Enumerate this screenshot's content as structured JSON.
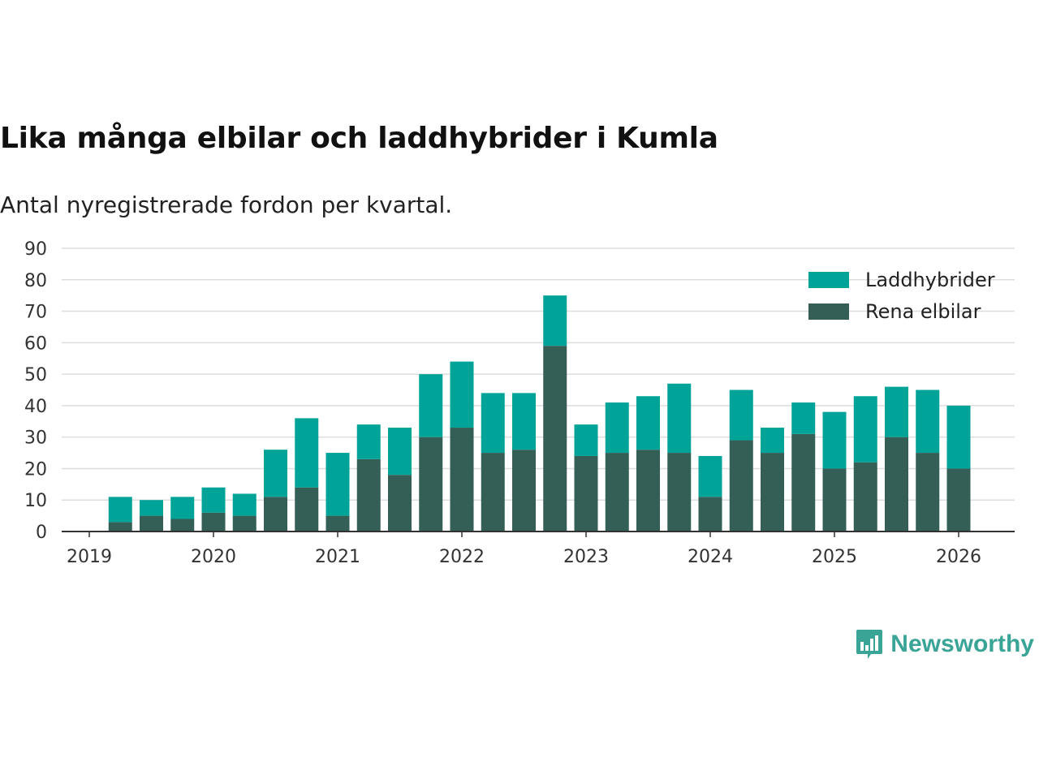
{
  "title": "Lika många elbilar och laddhybrider i Kumla",
  "subtitle": "Antal nyregistrerade fordon per kvartal.",
  "brand": {
    "name": "Newsworthy",
    "icon": "newsworthy-logo-icon",
    "color": "#3aa497"
  },
  "colors": {
    "laddhybrider": "#00a398",
    "elbilar": "#335f57",
    "grid": "#dddddd",
    "axis": "#333333"
  },
  "chart_data": {
    "type": "bar",
    "stacked": true,
    "title": "Lika många elbilar och laddhybrider i Kumla",
    "subtitle": "Antal nyregistrerade fordon per kvartal.",
    "xlabel": "",
    "ylabel": "",
    "ylim": [
      0,
      90
    ],
    "yticks": [
      "0",
      "10",
      "20",
      "30",
      "40",
      "50",
      "60",
      "70",
      "80",
      "90"
    ],
    "xticks": [
      "2019",
      "2020",
      "2021",
      "2022",
      "2023",
      "2024",
      "2025",
      "2026"
    ],
    "x_range": [
      2019.0,
      2026.0
    ],
    "grid": true,
    "legend_position": "top-right",
    "categories": [
      "2019 Q2",
      "2019 Q3",
      "2019 Q4",
      "2020 Q1",
      "2020 Q2",
      "2020 Q3",
      "2020 Q4",
      "2021 Q1",
      "2021 Q2",
      "2021 Q3",
      "2021 Q4",
      "2022 Q1",
      "2022 Q2",
      "2022 Q3",
      "2022 Q4",
      "2023 Q1",
      "2023 Q2",
      "2023 Q3",
      "2023 Q4",
      "2024 Q1",
      "2024 Q2",
      "2024 Q3",
      "2024 Q4",
      "2025 Q1",
      "2025 Q2",
      "2025 Q3",
      "2025 Q4",
      "2026 Q1"
    ],
    "x_positions": [
      2019.25,
      2019.5,
      2019.75,
      2020.0,
      2020.25,
      2020.5,
      2020.75,
      2021.0,
      2021.25,
      2021.5,
      2021.75,
      2022.0,
      2022.25,
      2022.5,
      2022.75,
      2023.0,
      2023.25,
      2023.5,
      2023.75,
      2024.0,
      2024.25,
      2024.5,
      2024.75,
      2025.0,
      2025.25,
      2025.5,
      2025.75,
      2026.0
    ],
    "series": [
      {
        "name": "Rena elbilar",
        "color": "#335f57",
        "values": [
          3,
          5,
          4,
          6,
          5,
          11,
          14,
          5,
          23,
          18,
          30,
          33,
          25,
          26,
          59,
          24,
          25,
          26,
          25,
          11,
          29,
          25,
          31,
          20,
          22,
          30,
          25,
          20
        ]
      },
      {
        "name": "Laddhybrider",
        "color": "#00a398",
        "values": [
          8,
          5,
          7,
          8,
          7,
          15,
          22,
          20,
          11,
          15,
          20,
          21,
          19,
          18,
          16,
          10,
          16,
          17,
          22,
          13,
          16,
          8,
          10,
          18,
          21,
          16,
          20,
          20
        ]
      }
    ],
    "legend": [
      "Laddhybrider",
      "Rena elbilar"
    ]
  }
}
